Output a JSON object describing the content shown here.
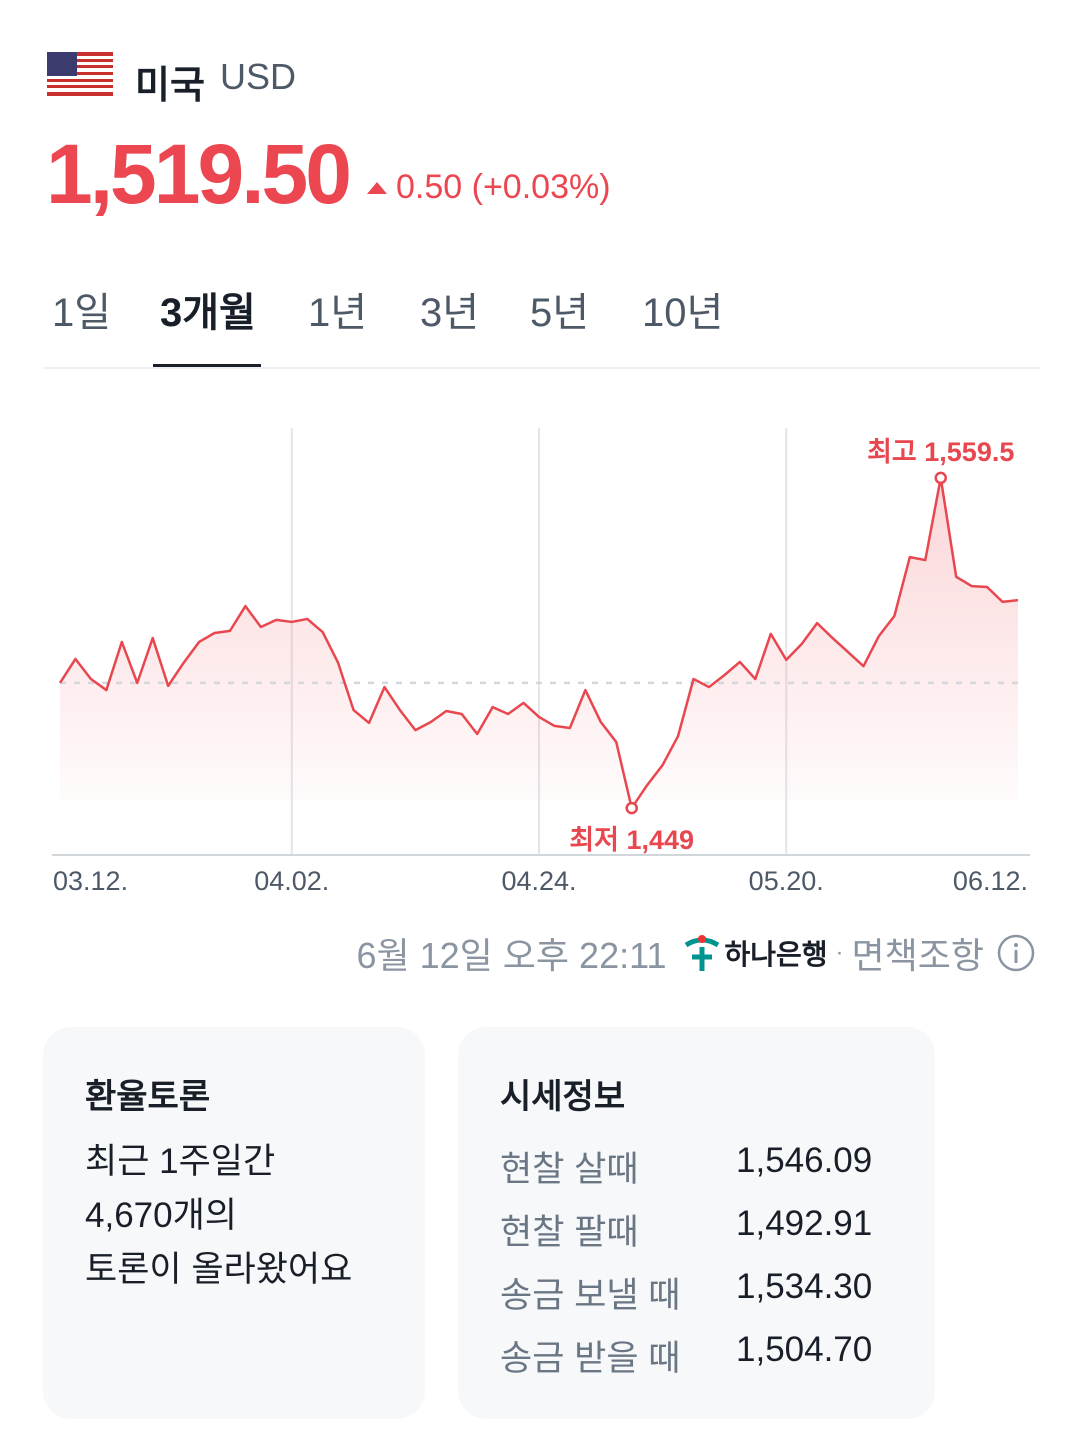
{
  "header": {
    "country": "미국",
    "currency": "USD",
    "price": "1,519.50",
    "change": "0.50 (+0.03%)"
  },
  "tabs": {
    "items": [
      "1일",
      "3개월",
      "1년",
      "3년",
      "5년",
      "10년"
    ],
    "active": 1
  },
  "chart_data": {
    "type": "line",
    "color": "#e8474f",
    "categories": [
      "03.12.",
      null,
      null,
      null,
      null,
      null,
      null,
      null,
      null,
      null,
      null,
      null,
      null,
      null,
      null,
      "04.02.",
      null,
      null,
      null,
      null,
      null,
      null,
      null,
      null,
      null,
      null,
      null,
      null,
      null,
      null,
      null,
      "04.24.",
      null,
      null,
      null,
      null,
      null,
      null,
      null,
      null,
      null,
      null,
      null,
      null,
      null,
      null,
      null,
      "05.20.",
      null,
      null,
      null,
      null,
      null,
      null,
      null,
      null,
      null,
      null,
      null,
      null,
      null,
      null,
      "06.12."
    ],
    "values": [
      1490.9,
      1498.9,
      1492.2,
      1488.5,
      1504.6,
      1490.9,
      1505.9,
      1489.9,
      1497.6,
      1504.6,
      1507.6,
      1508.3,
      1516.6,
      1509.6,
      1512.0,
      1511.3,
      1512.3,
      1507.9,
      1497.6,
      1481.8,
      1477.5,
      1489.5,
      1481.8,
      1475.1,
      1477.8,
      1481.5,
      1480.5,
      1473.8,
      1482.8,
      1480.5,
      1484.2,
      1479.5,
      1476.5,
      1475.8,
      1488.5,
      1477.8,
      1471.1,
      1449,
      1456.7,
      1463.4,
      1473.1,
      1492.2,
      1489.5,
      1493.5,
      1497.9,
      1492.2,
      1507.3,
      1498.6,
      1503.9,
      1510.9,
      1505.9,
      1501.2,
      1496.5,
      1506.6,
      1513.3,
      1533.0,
      1532.0,
      1559.5,
      1526.4,
      1523.3,
      1523.0,
      1518.0,
      1518.6
    ],
    "ylim": [
      1433.3,
      1576.2
    ],
    "baseline": 1490.9,
    "annotations": [
      {
        "text": "최고 1,559.5",
        "value": 1559.5,
        "position": "above"
      },
      {
        "text": "최저 1,449",
        "value": 1449,
        "position": "below"
      }
    ]
  },
  "footer": {
    "timestamp": "6월 12일 오후 22:11",
    "bank": "하나은행",
    "disclaimer": "면책조항"
  },
  "discussion": {
    "title": "환율토론",
    "lines": [
      "최근 1주일간",
      "4,670개의",
      "토론이 올라왔어요"
    ]
  },
  "quotes": {
    "title": "시세정보",
    "rows": [
      [
        "현찰 살때",
        "1,546.09"
      ],
      [
        "현찰 팔때",
        "1,492.91"
      ],
      [
        "송금 보낼 때",
        "1,534.30"
      ],
      [
        "송금 받을 때",
        "1,504.70"
      ]
    ]
  }
}
